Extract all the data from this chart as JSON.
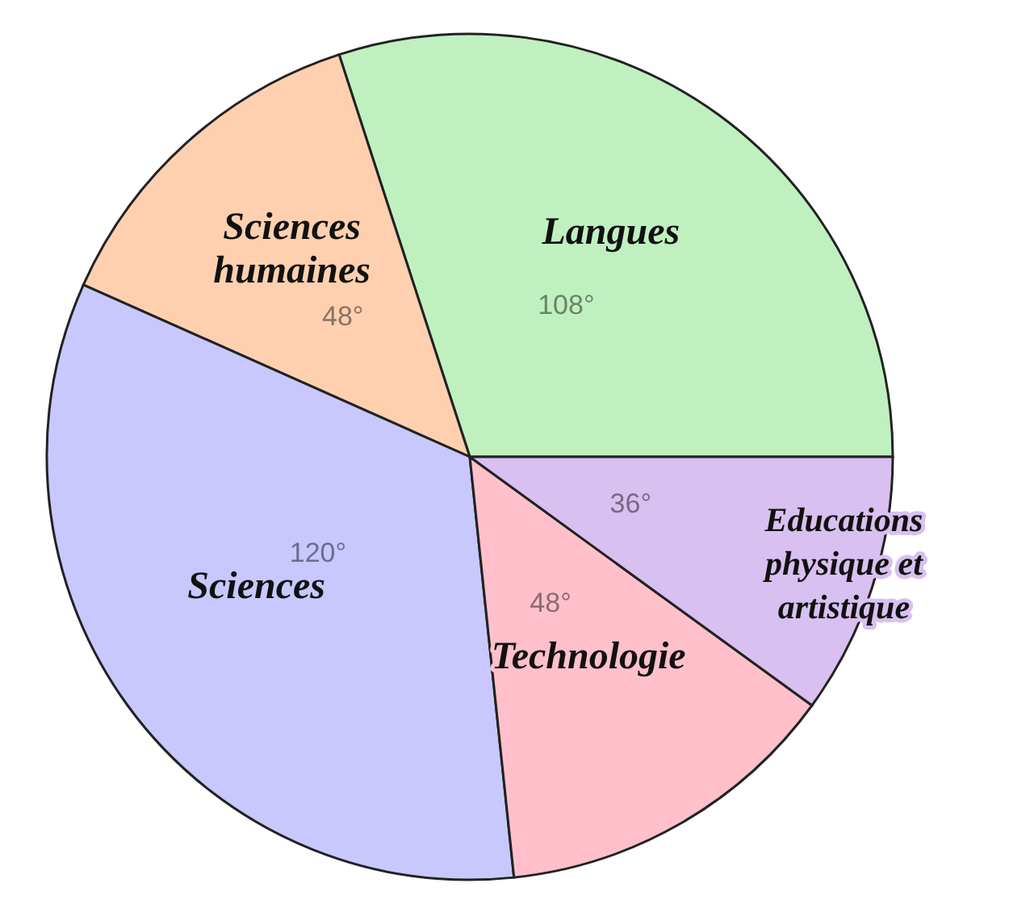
{
  "chart_data": {
    "type": "pie",
    "categories": [
      "Langues",
      "Sciences humaines",
      "Sciences",
      "Technologie",
      "Educations physique et artistique"
    ],
    "values": [
      108,
      48,
      120,
      48,
      36
    ],
    "colors": [
      "#c0f0c0",
      "#ffd0b0",
      "#c8c8ff",
      "#ffc0cc",
      "#d8c0f0"
    ],
    "value_labels": [
      "108°",
      "48°",
      "120°",
      "48°",
      "36°"
    ],
    "legend": false
  }
}
